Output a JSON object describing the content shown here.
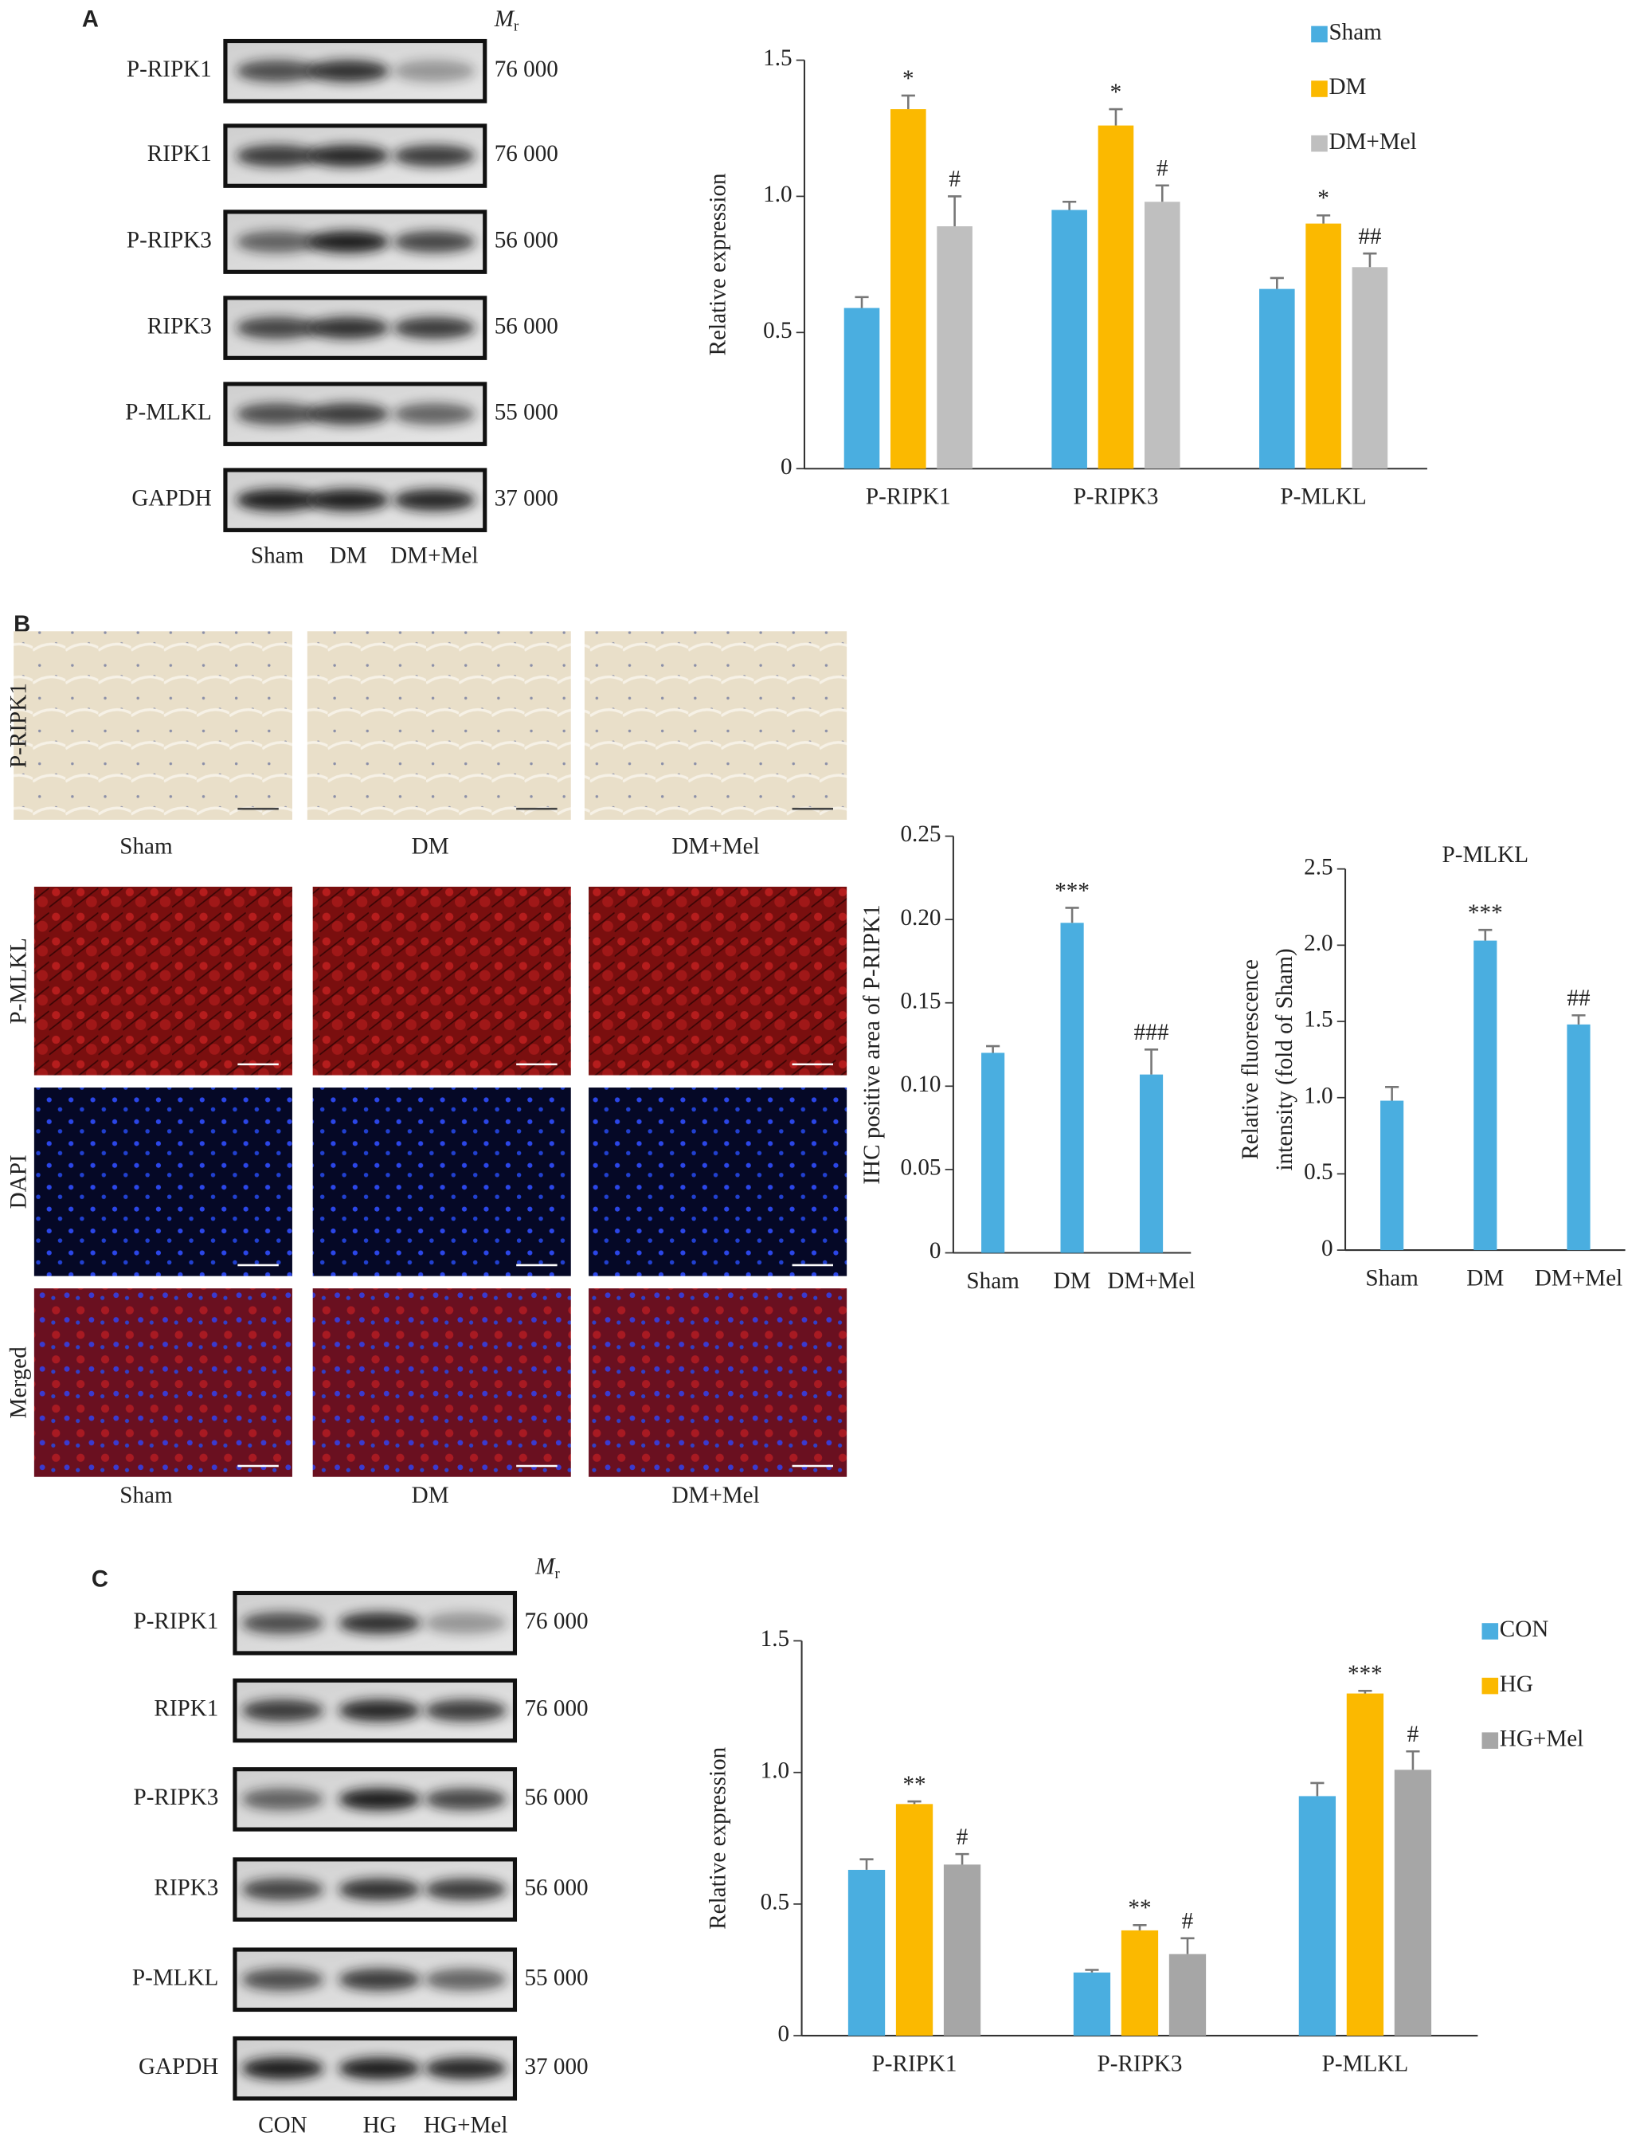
{
  "panel_labels": [
    "A",
    "B",
    "C"
  ],
  "blot_a": {
    "mr_label": {
      "symbol": "M",
      "subscript": "r"
    },
    "rows": [
      {
        "label": "P-RIPK1",
        "mr": "76 000"
      },
      {
        "label": "RIPK1",
        "mr": "76 000"
      },
      {
        "label": "P-RIPK3",
        "mr": "56 000"
      },
      {
        "label": "RIPK3",
        "mr": "56 000"
      },
      {
        "label": "P-MLKL",
        "mr": "55 000"
      },
      {
        "label": "GAPDH",
        "mr": "37 000"
      }
    ],
    "lanes": [
      "Sham",
      "DM",
      "DM+Mel"
    ]
  },
  "micrographs": {
    "rows": [
      "P-RIPK1",
      "P-MLKL",
      "DAPI",
      "Merged"
    ],
    "columns": [
      "Sham",
      "DM",
      "DM+Mel"
    ]
  },
  "blot_c": {
    "mr_label": {
      "symbol": "M",
      "subscript": "r"
    },
    "rows": [
      {
        "label": "P-RIPK1",
        "mr": "76 000"
      },
      {
        "label": "RIPK1",
        "mr": "76 000"
      },
      {
        "label": "P-RIPK3",
        "mr": "56 000"
      },
      {
        "label": "RIPK3",
        "mr": "56 000"
      },
      {
        "label": "P-MLKL",
        "mr": "55 000"
      },
      {
        "label": "GAPDH",
        "mr": "37 000"
      }
    ],
    "lanes": [
      "CON",
      "HG",
      "HG+Mel"
    ]
  },
  "chart_data": [
    {
      "type": "bar",
      "y_label": [
        "Relative expression"
      ],
      "categories": [
        "P-RIPK1",
        "P-RIPK3",
        "P-MLKL"
      ],
      "series": [
        {
          "name": "Sham",
          "color": "#4aaee0",
          "values": [
            0.59,
            0.95,
            0.66
          ],
          "errors": [
            0.04,
            0.03,
            0.04
          ],
          "annotations": [
            null,
            null,
            null
          ]
        },
        {
          "name": "DM",
          "color": "#fbb900",
          "values": [
            1.32,
            1.26,
            0.9
          ],
          "errors": [
            0.05,
            0.06,
            0.03
          ],
          "annotations": [
            "*",
            "*",
            "*"
          ]
        },
        {
          "name": "DM+Mel",
          "color": "#bfbfbf",
          "values": [
            0.89,
            0.98,
            0.74
          ],
          "errors": [
            0.11,
            0.06,
            0.05
          ],
          "annotations": [
            "#",
            "#",
            "##"
          ]
        }
      ],
      "ylim": [
        0,
        1.5
      ],
      "yticks": [
        0,
        0.5,
        {
          "value": 1,
          "label": "1.0"
        },
        1.5
      ],
      "legend": "top-right"
    },
    {
      "type": "bar",
      "y_label": [
        "IHC positive area of P-RIPK1"
      ],
      "categories": [
        "Sham",
        "DM",
        "DM+Mel"
      ],
      "color": "#4aaee0",
      "values": [
        0.12,
        0.198,
        0.107
      ],
      "errors": [
        0.004,
        0.009,
        0.015
      ],
      "annotations": [
        null,
        "***",
        "###"
      ],
      "ylim": [
        0,
        0.25
      ],
      "yticks": [
        0,
        0.05,
        {
          "value": 0.1,
          "label": "0.10"
        },
        0.15,
        {
          "value": 0.2,
          "label": "0.20"
        },
        0.25
      ]
    },
    {
      "type": "bar",
      "title": "P-MLKL",
      "y_label": [
        "Relative fluorescence",
        "intensity (fold of Sham)"
      ],
      "categories": [
        "Sham",
        "DM",
        "DM+Mel"
      ],
      "color": "#4aaee0",
      "values": [
        0.98,
        2.03,
        1.48
      ],
      "errors": [
        0.09,
        0.07,
        0.06
      ],
      "annotations": [
        null,
        "***",
        "##"
      ],
      "ylim": [
        0,
        2.5
      ],
      "yticks": [
        0,
        0.5,
        {
          "value": 1,
          "label": "1.0"
        },
        1.5,
        {
          "value": 2,
          "label": "2.0"
        },
        2.5
      ]
    },
    {
      "type": "bar",
      "y_label": [
        "Relative expression"
      ],
      "categories": [
        "P-RIPK1",
        "P-RIPK3",
        "P-MLKL"
      ],
      "series": [
        {
          "name": "CON",
          "color": "#4aaee0",
          "values": [
            0.63,
            0.24,
            0.91
          ],
          "errors": [
            0.04,
            0.01,
            0.05
          ],
          "annotations": [
            null,
            null,
            null
          ]
        },
        {
          "name": "HG",
          "color": "#fbb900",
          "values": [
            0.88,
            0.4,
            1.3
          ],
          "errors": [
            0.01,
            0.02,
            0.01
          ],
          "annotations": [
            "**",
            "**",
            "***"
          ]
        },
        {
          "name": "HG+Mel",
          "color": "#a6a6a6",
          "values": [
            0.65,
            0.31,
            1.01
          ],
          "errors": [
            0.04,
            0.06,
            0.07
          ],
          "annotations": [
            "#",
            "#",
            "#"
          ]
        }
      ],
      "ylim": [
        0,
        1.5
      ],
      "yticks": [
        0,
        0.5,
        {
          "value": 1,
          "label": "1.0"
        },
        1.5
      ],
      "legend": "top-right"
    }
  ]
}
